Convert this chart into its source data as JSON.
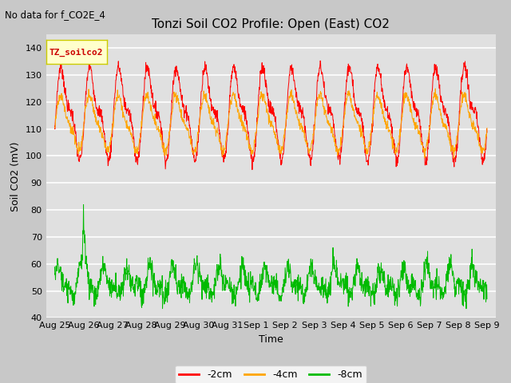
{
  "title": "Tonzi Soil CO2 Profile: Open (East) CO2",
  "subtitle": "No data for f_CO2E_4",
  "ylabel": "Soil CO2 (mV)",
  "xlabel": "Time",
  "ylim": [
    40,
    145
  ],
  "yticks": [
    40,
    50,
    60,
    70,
    80,
    90,
    100,
    110,
    120,
    130,
    140
  ],
  "fig_facecolor": "#c8c8c8",
  "ax_facecolor": "#e0e0e0",
  "series": {
    "minus2cm": {
      "color": "#ff0000",
      "label": "-2cm"
    },
    "minus4cm": {
      "color": "#ffa500",
      "label": "-4cm"
    },
    "minus8cm": {
      "color": "#00bb00",
      "label": "-8cm"
    }
  },
  "legend_box_facecolor": "#ffffcc",
  "legend_box_edgecolor": "#cccc00",
  "legend_box_label": "TZ_soilco2",
  "tick_labels": [
    "Aug 25",
    "Aug 26",
    "Aug 27",
    "Aug 28",
    "Aug 29",
    "Aug 30",
    "Aug 31",
    "Sep 1",
    "Sep 2",
    "Sep 3",
    "Sep 4",
    "Sep 5",
    "Sep 6",
    "Sep 7",
    "Sep 8",
    "Sep 9"
  ],
  "n_points": 1500,
  "red_base": 116,
  "red_amp": 14,
  "orange_base": 112,
  "orange_amp": 9,
  "green_base": 53,
  "green_amp": 4,
  "period_days": 1.0
}
